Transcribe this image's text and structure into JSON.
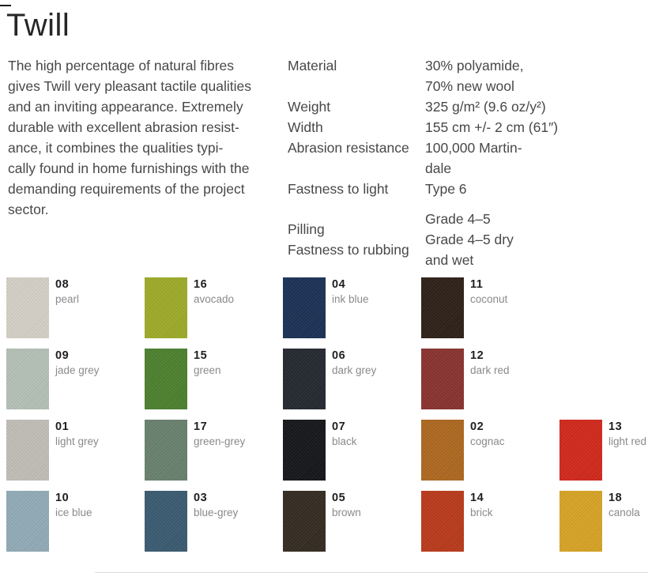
{
  "page": {
    "title": "Twill",
    "description": "The high percentage of natural fibres\ngives Twill very pleasant tactile qualities\nand an inviting appearance. Extremely\ndurable with excellent abrasion resist-\nance, it combines the qualities typi-\ncally found in home furnishings with the\ndemanding requirements of the project\nsector."
  },
  "specs": {
    "rows": [
      {
        "label": "Material",
        "value": "30% polyamide,\n70% new wool",
        "centered": false
      },
      {
        "label": "Weight",
        "value": "325 g/m² (9.6 oz/y²)",
        "centered": false
      },
      {
        "label": "Width",
        "value": "155 cm +/- 2 cm (61″)",
        "centered": false
      },
      {
        "label": "Abrasion resistance",
        "value": "100,000 Martin-\ndale",
        "centered": false
      },
      {
        "label": "Fastness to light",
        "value": "Type 6",
        "centered": false
      },
      {
        "label": "Pilling\nFastness to rubbing",
        "value": "Grade 4–5\nGrade 4–5 dry\nand wet",
        "centered": true
      }
    ]
  },
  "swatches": {
    "rows": [
      [
        {
          "code": "08",
          "name": "pearl",
          "color": "#d6d2c8"
        },
        {
          "code": "16",
          "name": "avocado",
          "color": "#9fad2a"
        },
        {
          "code": "04",
          "name": "ink blue",
          "color": "#1e3357"
        },
        {
          "code": "11",
          "name": "coconut",
          "color": "#2f2219"
        }
      ],
      [
        {
          "code": "09",
          "name": "jade grey",
          "color": "#b6c2b8"
        },
        {
          "code": "15",
          "name": "green",
          "color": "#4e8230"
        },
        {
          "code": "06",
          "name": "dark grey",
          "color": "#262a31"
        },
        {
          "code": "12",
          "name": "dark red",
          "color": "#8b3533"
        }
      ],
      [
        {
          "code": "01",
          "name": "light grey",
          "color": "#c3c0b9"
        },
        {
          "code": "17",
          "name": "green-grey",
          "color": "#6a836f"
        },
        {
          "code": "07",
          "name": "black",
          "color": "#17181c"
        },
        {
          "code": "02",
          "name": "cognac",
          "color": "#af6a21"
        },
        {
          "code": "13",
          "name": "light red",
          "color": "#d42a1d"
        }
      ],
      [
        {
          "code": "10",
          "name": "ice blue",
          "color": "#93adb8"
        },
        {
          "code": "03",
          "name": "blue-grey",
          "color": "#3d5d73"
        },
        {
          "code": "05",
          "name": "brown",
          "color": "#362d23"
        },
        {
          "code": "14",
          "name": "brick",
          "color": "#bc3c1d"
        },
        {
          "code": "18",
          "name": "canola",
          "color": "#d9a527"
        }
      ]
    ]
  }
}
